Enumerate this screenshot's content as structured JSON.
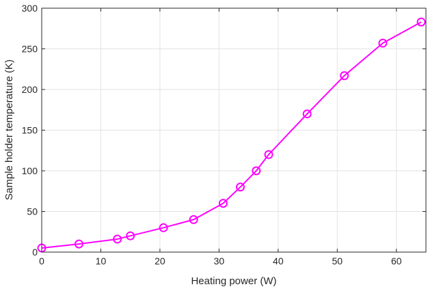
{
  "chart_data": {
    "type": "line",
    "title": "",
    "xlabel": "Heating power (W)",
    "ylabel": "Sample holder temperature (K)",
    "xlim": [
      0,
      65
    ],
    "ylim": [
      0,
      300
    ],
    "xticks": [
      0,
      10,
      20,
      30,
      40,
      50,
      60
    ],
    "yticks": [
      0,
      50,
      100,
      150,
      200,
      250,
      300
    ],
    "grid": true,
    "legend": "none",
    "series": [
      {
        "color": "#ff00ff",
        "marker": "circle-open",
        "x": [
          0,
          6.3,
          12.8,
          15.0,
          20.6,
          25.7,
          30.7,
          33.6,
          36.3,
          38.4,
          44.9,
          51.2,
          57.7,
          64.2
        ],
        "y": [
          5,
          10,
          16,
          20,
          30,
          40,
          60,
          80,
          100,
          120,
          170,
          217,
          257,
          283
        ]
      }
    ]
  }
}
